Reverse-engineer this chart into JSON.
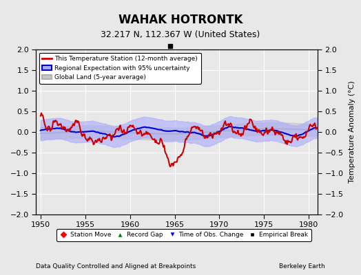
{
  "title": "WAHAK HOTRONTK",
  "subtitle": "32.217 N, 112.367 W (United States)",
  "xlabel_left": "Data Quality Controlled and Aligned at Breakpoints",
  "xlabel_right": "Berkeley Earth",
  "ylabel": "Temperature Anomaly (°C)",
  "xlim": [
    1949.5,
    1981.0
  ],
  "ylim": [
    -2.0,
    2.0
  ],
  "xticks": [
    1950,
    1955,
    1960,
    1965,
    1970,
    1975,
    1980
  ],
  "yticks": [
    -2.0,
    -1.5,
    -1.0,
    -0.5,
    0.0,
    0.5,
    1.0,
    1.5,
    2.0
  ],
  "bg_color": "#e8e8e8",
  "plot_bg_color": "#e8e8e8",
  "grid_color": "#ffffff",
  "station_color": "#cc0000",
  "regional_color": "#0000cc",
  "regional_fill_color": "#aaaaff",
  "global_color": "#b0b0b0",
  "global_fill_color": "#c8c8c8",
  "time_of_obs_marker_x": 1964.5,
  "empirical_break_x": 1964.5,
  "seed": 42
}
